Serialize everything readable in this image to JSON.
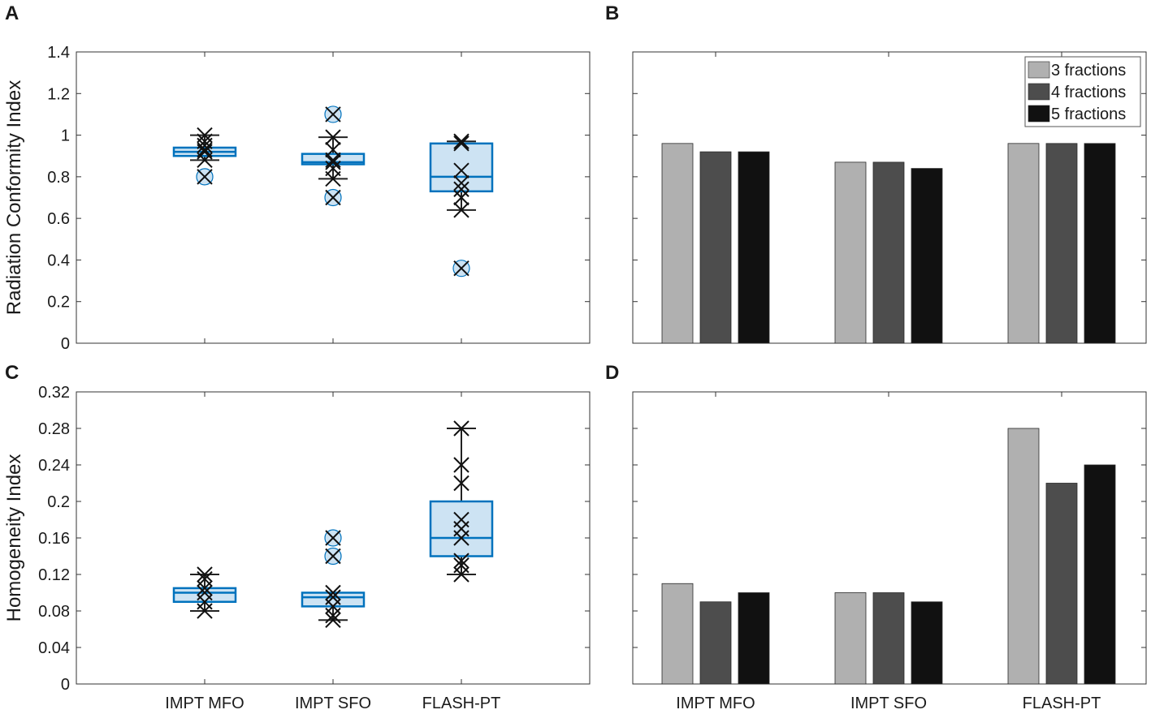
{
  "chart_data": [
    {
      "panel": "A",
      "type": "box",
      "ylabel": "Radiation Conformity Index",
      "ylim": [
        0,
        1.4
      ],
      "yticks": [
        "0",
        "0.2",
        "0.4",
        "0.6",
        "0.8",
        "1",
        "1.2",
        "1.4"
      ],
      "categories": [
        "IMPT MFO",
        "IMPT SFO",
        "FLASH-PT"
      ],
      "show_category_labels": false,
      "boxes": [
        {
          "q1": 0.9,
          "median": 0.92,
          "q3": 0.94,
          "whisker_low": 0.88,
          "whisker_high": 1.0,
          "outliers": [
            0.8
          ],
          "points": [
            0.8,
            0.88,
            0.92,
            0.93,
            0.95,
            0.97,
            1.0
          ]
        },
        {
          "q1": 0.86,
          "median": 0.87,
          "q3": 0.91,
          "whisker_low": 0.79,
          "whisker_high": 0.99,
          "outliers": [
            1.1,
            0.7
          ],
          "points": [
            0.7,
            0.79,
            0.84,
            0.87,
            0.88,
            0.93,
            0.99,
            1.1
          ]
        },
        {
          "q1": 0.73,
          "median": 0.8,
          "q3": 0.96,
          "whisker_low": 0.64,
          "whisker_high": 0.97,
          "outliers": [
            0.36
          ],
          "points": [
            0.36,
            0.64,
            0.7,
            0.74,
            0.77,
            0.83,
            0.96,
            0.97
          ]
        }
      ]
    },
    {
      "panel": "B",
      "type": "bar",
      "ylim": [
        0,
        1.4
      ],
      "categories": [
        "IMPT MFO",
        "IMPT SFO",
        "FLASH-PT"
      ],
      "show_category_labels": false,
      "series": [
        {
          "name": "3 fractions",
          "values": [
            0.96,
            0.87,
            0.96
          ]
        },
        {
          "name": "4 fractions",
          "values": [
            0.92,
            0.87,
            0.96
          ]
        },
        {
          "name": "5 fractions",
          "values": [
            0.92,
            0.84,
            0.96
          ]
        }
      ],
      "legend": "top-right"
    },
    {
      "panel": "C",
      "type": "box",
      "ylabel": "Homogeneity Index",
      "ylim": [
        0,
        0.32
      ],
      "yticks": [
        "0",
        "0.04",
        "0.08",
        "0.12",
        "0.16",
        "0.2",
        "0.24",
        "0.28",
        "0.32"
      ],
      "categories": [
        "IMPT MFO",
        "IMPT SFO",
        "FLASH-PT"
      ],
      "show_category_labels": true,
      "boxes": [
        {
          "q1": 0.09,
          "median": 0.1,
          "q3": 0.105,
          "whisker_low": 0.08,
          "whisker_high": 0.12,
          "outliers": [],
          "points": [
            0.08,
            0.09,
            0.1,
            0.105,
            0.115,
            0.12
          ]
        },
        {
          "q1": 0.085,
          "median": 0.095,
          "q3": 0.1,
          "whisker_low": 0.07,
          "whisker_high": 0.1,
          "outliers": [
            0.16,
            0.14
          ],
          "points": [
            0.07,
            0.075,
            0.085,
            0.095,
            0.1,
            0.14,
            0.16
          ]
        },
        {
          "q1": 0.14,
          "median": 0.16,
          "q3": 0.2,
          "whisker_low": 0.12,
          "whisker_high": 0.28,
          "outliers": [],
          "points": [
            0.12,
            0.13,
            0.135,
            0.16,
            0.17,
            0.18,
            0.22,
            0.24,
            0.28
          ]
        }
      ]
    },
    {
      "panel": "D",
      "type": "bar",
      "ylim": [
        0,
        0.32
      ],
      "categories": [
        "IMPT MFO",
        "IMPT SFO",
        "FLASH-PT"
      ],
      "show_category_labels": true,
      "series": [
        {
          "name": "3 fractions",
          "values": [
            0.11,
            0.1,
            0.28
          ]
        },
        {
          "name": "4 fractions",
          "values": [
            0.09,
            0.1,
            0.22
          ]
        },
        {
          "name": "5 fractions",
          "values": [
            0.1,
            0.09,
            0.24
          ]
        }
      ]
    }
  ],
  "colors": {
    "box_edge": "#0072BD",
    "box_fill": "#cde3f3",
    "marker": "#111111",
    "bar_series": [
      "#b0b0b0",
      "#4d4d4d",
      "#111111"
    ],
    "axis": "#333333"
  }
}
